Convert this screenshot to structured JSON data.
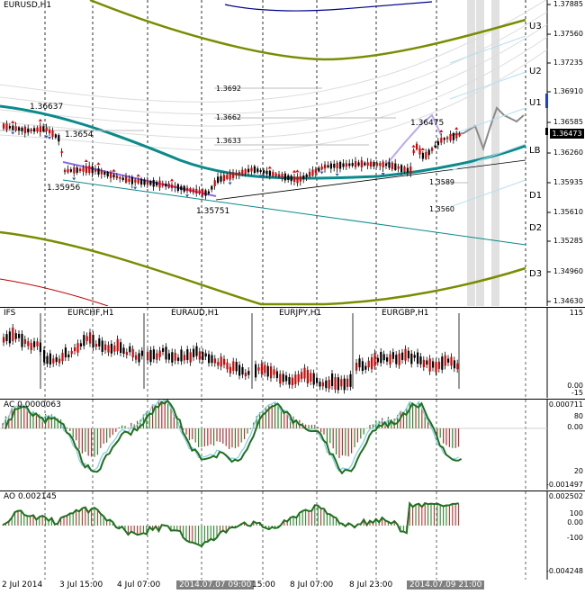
{
  "main": {
    "title": "EURUSD,H1",
    "current_price": "1.36473",
    "y_labels": [
      "1.37885",
      "1.37560",
      "1.37235",
      "1.36910",
      "1.36585",
      "1.36260",
      "1.35935",
      "1.35610",
      "1.35285",
      "1.34960",
      "1.34630"
    ],
    "level_labels": [
      "U3",
      "U2",
      "U1",
      "LB",
      "D1",
      "D2",
      "D3"
    ],
    "annotations": [
      "1.36637",
      "1.3654",
      "1.35956",
      "1.35751",
      "1.3692",
      "1.3662",
      "1.3633",
      "1.36475",
      "1.3589",
      "1.3560"
    ]
  },
  "ifs": {
    "title": "IFS",
    "symbols": [
      "EURCHF,H1",
      "EURAUD,H1",
      "EURJPY,H1",
      "EURGBP,H1"
    ],
    "y_labels": [
      "115",
      "0.00",
      "-15"
    ]
  },
  "ac": {
    "title": "AC 0.0000063",
    "y_labels": [
      "0.000711",
      "80",
      "0.00",
      "20",
      "-0.001497"
    ]
  },
  "ao": {
    "title": "AO 0.002145",
    "y_labels": [
      "0.002502",
      "100",
      "0.00",
      "-100",
      "-0.004248"
    ]
  },
  "x_labels": [
    "2 Jul 2014",
    "3 Jul 15:00",
    "4 Jul 07:00",
    "2014.07.07 09:00",
    "15:00",
    "8 Jul 07:00",
    "8 Jul 23:00",
    "2014.07.09 21:00"
  ],
  "colors": {
    "bull": "#000000",
    "bear": "#e00000",
    "teal": "#0a8a8a",
    "olive": "#7a8c00",
    "navy": "#00008b",
    "purple": "#8a6be0",
    "green": "#207020"
  }
}
